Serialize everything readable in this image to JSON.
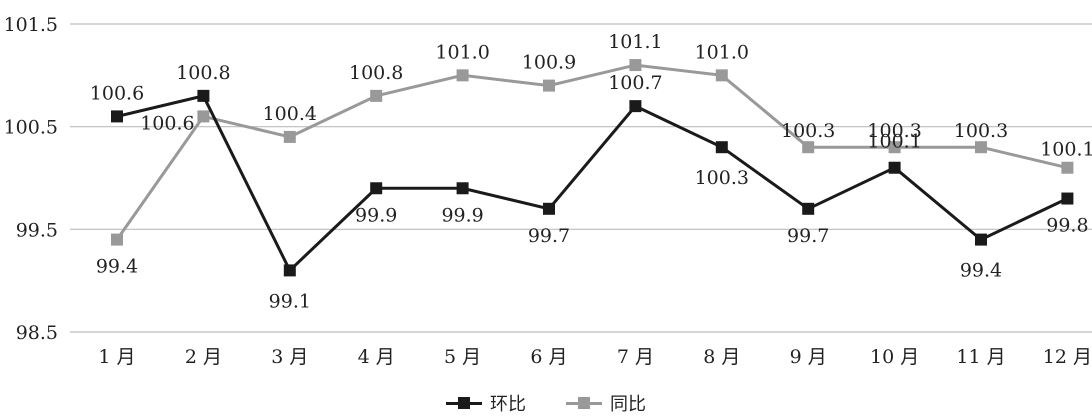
{
  "chart_data": {
    "type": "line",
    "categories": [
      "1 月",
      "2 月",
      "3 月",
      "4 月",
      "5 月",
      "6 月",
      "7 月",
      "8 月",
      "9 月",
      "10 月",
      "11 月",
      "12 月"
    ],
    "ylim": [
      98.5,
      101.5
    ],
    "yticks": [
      "98.5",
      "99.5",
      "100.5",
      "101.5"
    ],
    "grid": true,
    "legend_position": "bottom",
    "series": [
      {
        "name": "环比",
        "color": "#1a1a1a",
        "values": [
          100.6,
          100.8,
          99.1,
          99.9,
          99.9,
          99.7,
          100.7,
          100.3,
          99.7,
          100.1,
          99.4,
          99.8
        ],
        "labels": [
          "100.6",
          "100.8",
          "99.1",
          "99.9",
          "99.9",
          "99.7",
          "100.7",
          "100.3",
          "99.7",
          "100.1",
          "99.4",
          "99.8"
        ]
      },
      {
        "name": "同比",
        "color": "#999999",
        "values": [
          99.4,
          100.6,
          100.4,
          100.8,
          101.0,
          100.9,
          101.1,
          101.0,
          100.3,
          100.3,
          100.3,
          100.1
        ],
        "labels": [
          "99.4",
          "100.6",
          "100.4",
          "100.8",
          "101.0",
          "100.9",
          "101.1",
          "101.0",
          "100.3",
          "100.3",
          "100.3",
          "100.1"
        ]
      }
    ]
  }
}
